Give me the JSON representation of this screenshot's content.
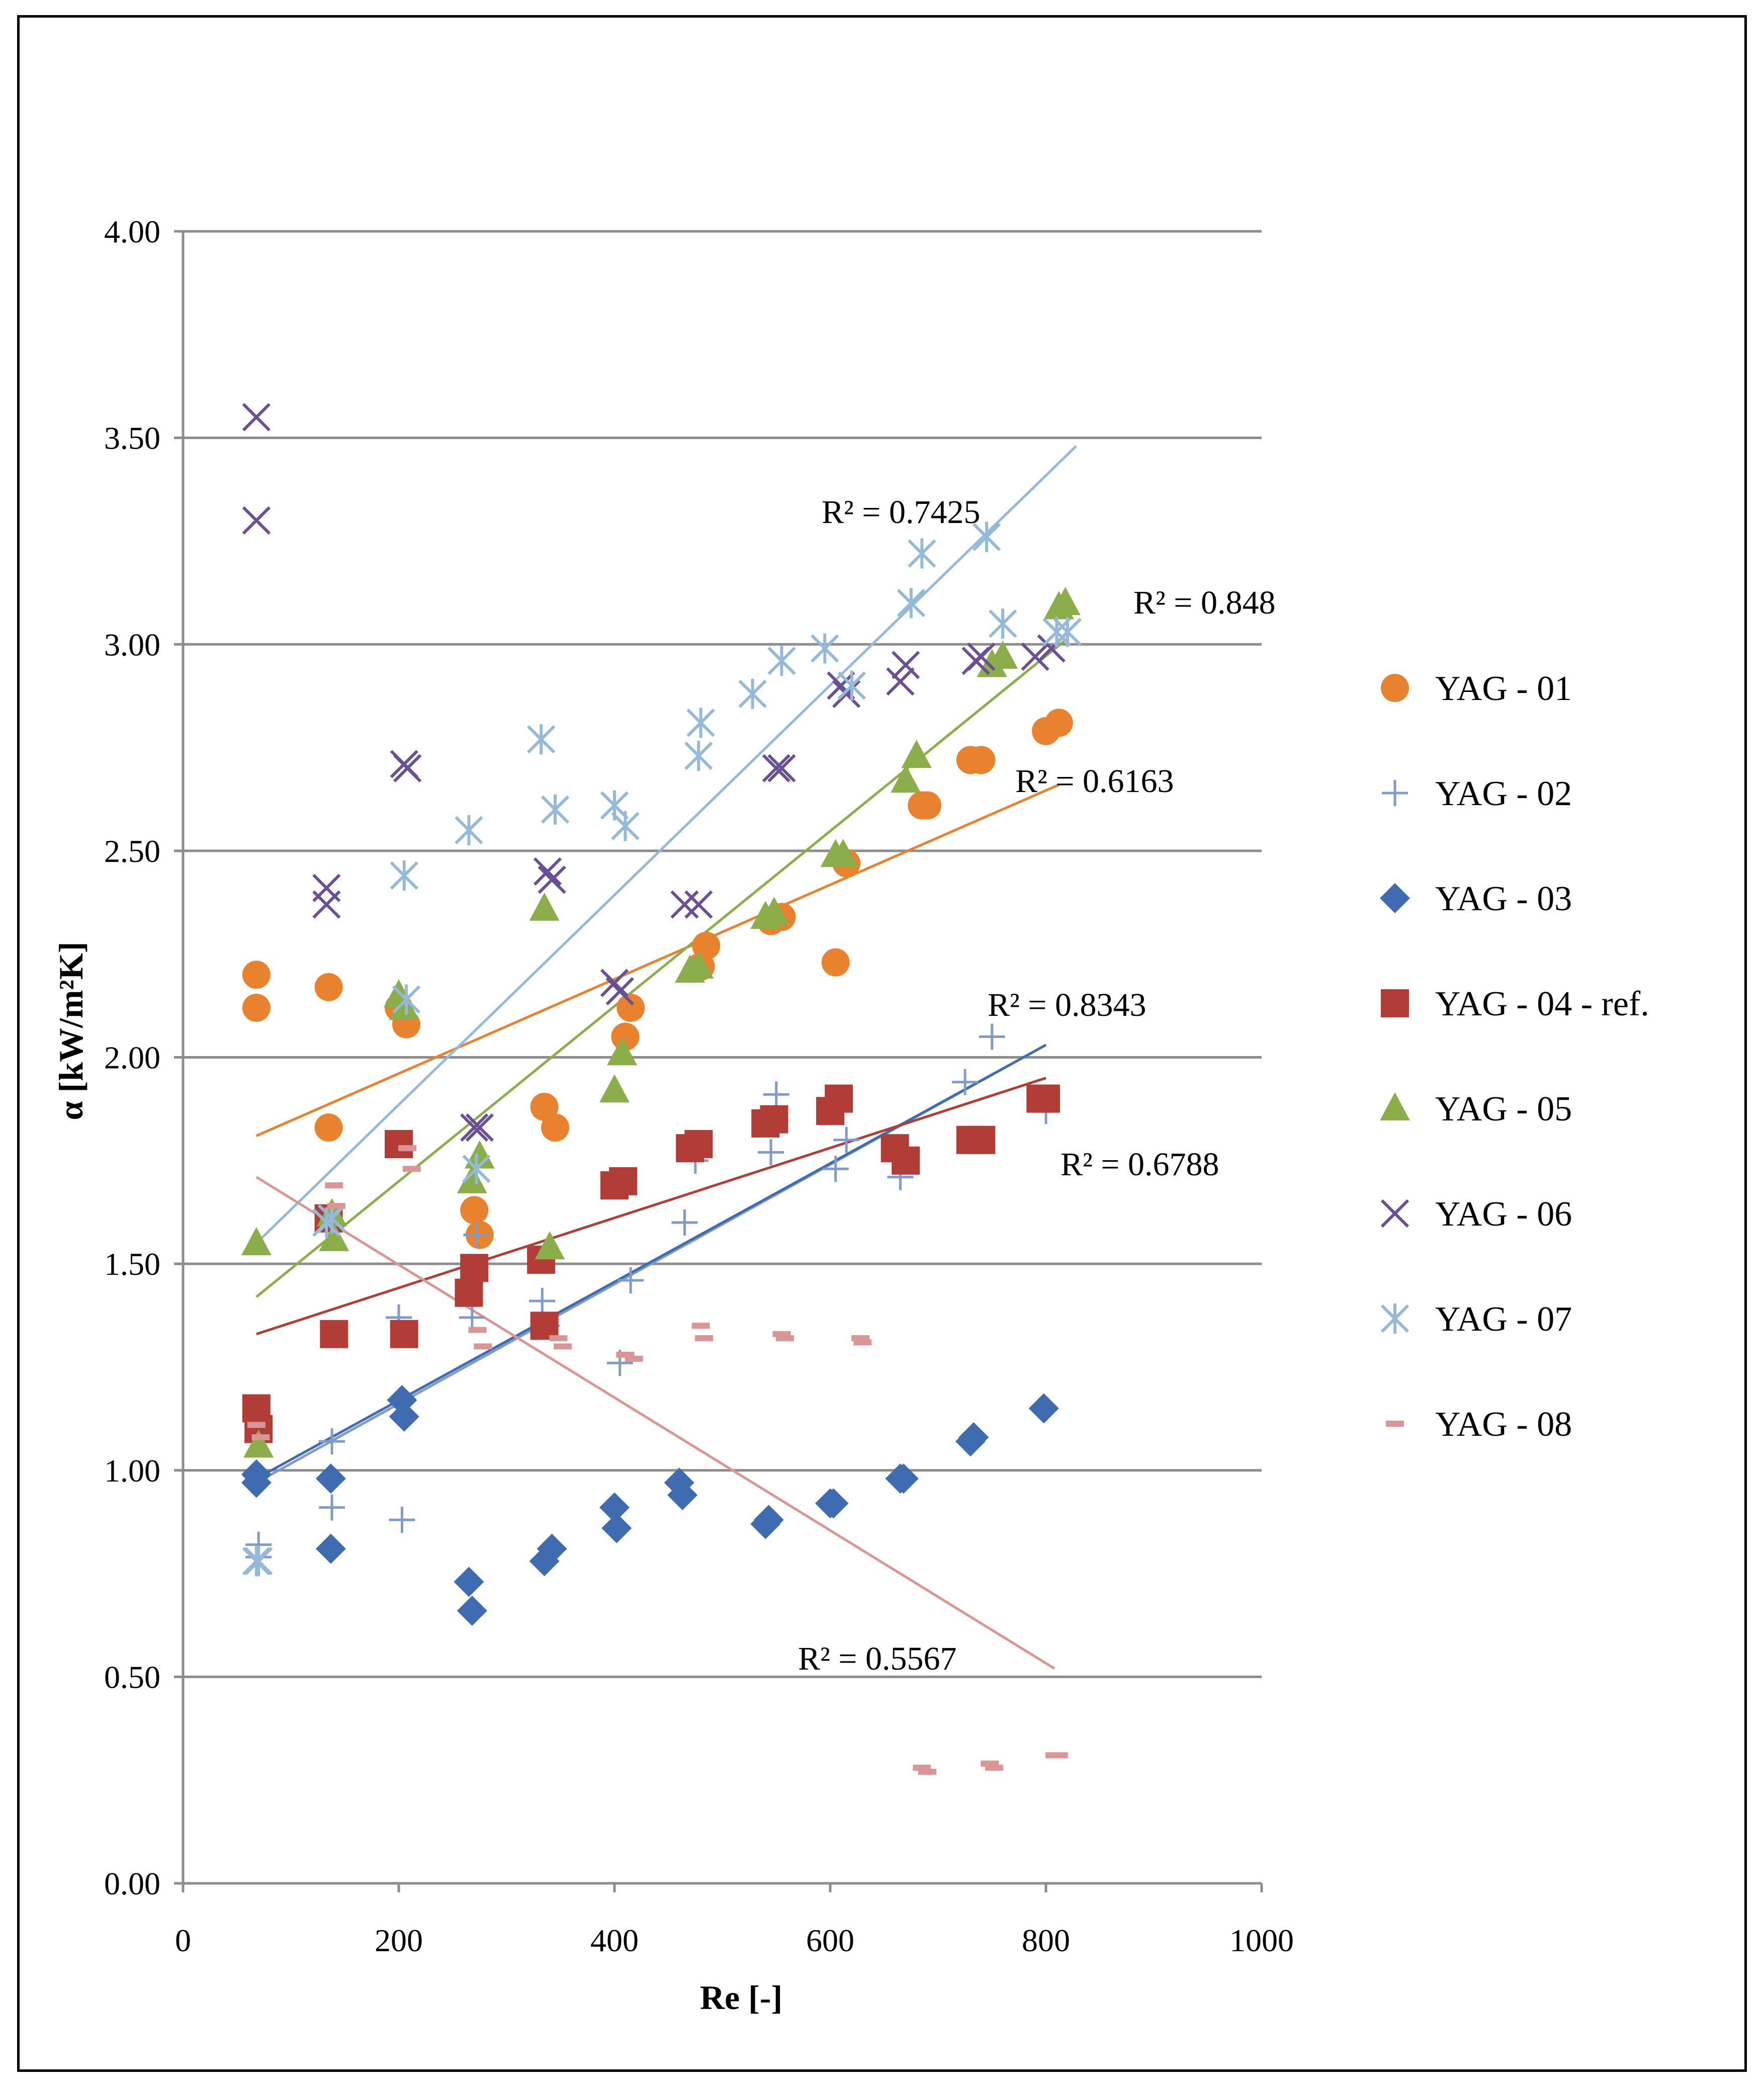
{
  "chart_data": {
    "type": "scatter",
    "xlabel": "Re [-]",
    "ylabel": "α [kW/m²K]",
    "xlim": [
      0,
      1000
    ],
    "ylim": [
      0,
      4
    ],
    "x_ticks": [
      "0",
      "200",
      "400",
      "600",
      "800",
      "1000"
    ],
    "y_ticks": [
      "0.00",
      "0.50",
      "1.00",
      "1.50",
      "2.00",
      "2.50",
      "3.00",
      "3.50",
      "4.00"
    ],
    "grid": "horizontal",
    "legend_position": "right",
    "series": [
      {
        "name": "YAG - 01",
        "marker": "circle",
        "color": "#E8822F",
        "points": [
          [
            68,
            2.2
          ],
          [
            68,
            2.12
          ],
          [
            135,
            2.17
          ],
          [
            135,
            1.83
          ],
          [
            200,
            2.12
          ],
          [
            207,
            2.08
          ],
          [
            270,
            1.63
          ],
          [
            275,
            1.57
          ],
          [
            335,
            1.88
          ],
          [
            345,
            1.83
          ],
          [
            410,
            2.05
          ],
          [
            415,
            2.12
          ],
          [
            480,
            2.22
          ],
          [
            485,
            2.27
          ],
          [
            545,
            2.33
          ],
          [
            555,
            2.34
          ],
          [
            605,
            2.23
          ],
          [
            615,
            2.47
          ],
          [
            685,
            2.61
          ],
          [
            690,
            2.61
          ],
          [
            730,
            2.72
          ],
          [
            740,
            2.72
          ],
          [
            800,
            2.79
          ],
          [
            812,
            2.81
          ]
        ],
        "trend": {
          "x": [
            68,
            812
          ],
          "y": [
            1.81,
            2.66
          ],
          "r2_label": "R² = 0.6163"
        }
      },
      {
        "name": "YAG - 02",
        "marker": "plus",
        "color": "#7F9ACB",
        "points": [
          [
            70,
            0.82
          ],
          [
            70,
            0.79
          ],
          [
            138,
            1.07
          ],
          [
            138,
            0.91
          ],
          [
            200,
            1.37
          ],
          [
            203,
            0.88
          ],
          [
            268,
            1.37
          ],
          [
            272,
            1.57
          ],
          [
            333,
            1.41
          ],
          [
            337,
            1.35
          ],
          [
            405,
            1.26
          ],
          [
            415,
            1.46
          ],
          [
            465,
            1.6
          ],
          [
            475,
            1.75
          ],
          [
            545,
            1.77
          ],
          [
            550,
            1.91
          ],
          [
            605,
            1.73
          ],
          [
            615,
            1.8
          ],
          [
            660,
            1.75
          ],
          [
            665,
            1.71
          ],
          [
            725,
            1.94
          ],
          [
            750,
            2.05
          ],
          [
            800,
            1.87
          ]
        ],
        "trend": {
          "x": [
            68,
            800
          ],
          "y": [
            0.97,
            2.03
          ],
          "r2_label": "R² = 0.8343"
        }
      },
      {
        "name": "YAG - 03",
        "marker": "diamond",
        "color": "#3F6CB0",
        "points": [
          [
            68,
            0.99
          ],
          [
            68,
            0.97
          ],
          [
            137,
            0.98
          ],
          [
            137,
            0.81
          ],
          [
            203,
            1.17
          ],
          [
            205,
            1.13
          ],
          [
            265,
            0.73
          ],
          [
            268,
            0.66
          ],
          [
            335,
            0.78
          ],
          [
            342,
            0.81
          ],
          [
            400,
            0.91
          ],
          [
            402,
            0.86
          ],
          [
            460,
            0.97
          ],
          [
            463,
            0.94
          ],
          [
            540,
            0.87
          ],
          [
            543,
            0.88
          ],
          [
            600,
            0.92
          ],
          [
            603,
            0.92
          ],
          [
            665,
            0.98
          ],
          [
            668,
            0.98
          ],
          [
            730,
            1.07
          ],
          [
            733,
            1.08
          ],
          [
            798,
            1.15
          ]
        ],
        "trend": {
          "x": [
            68,
            800
          ],
          "y": [
            0.98,
            2.03
          ],
          "r2_label": null
        }
      },
      {
        "name": "YAG - 04 - ref.",
        "marker": "square",
        "color": "#B23C36",
        "points": [
          [
            68,
            1.15
          ],
          [
            70,
            1.1
          ],
          [
            135,
            1.61
          ],
          [
            140,
            1.33
          ],
          [
            200,
            1.79
          ],
          [
            205,
            1.33
          ],
          [
            265,
            1.43
          ],
          [
            270,
            1.49
          ],
          [
            332,
            1.51
          ],
          [
            335,
            1.35
          ],
          [
            400,
            1.69
          ],
          [
            408,
            1.7
          ],
          [
            470,
            1.78
          ],
          [
            478,
            1.79
          ],
          [
            540,
            1.84
          ],
          [
            548,
            1.85
          ],
          [
            600,
            1.87
          ],
          [
            608,
            1.9
          ],
          [
            660,
            1.78
          ],
          [
            670,
            1.75
          ],
          [
            730,
            1.8
          ],
          [
            740,
            1.8
          ],
          [
            795,
            1.9
          ],
          [
            800,
            1.9
          ]
        ],
        "trend": {
          "x": [
            68,
            800
          ],
          "y": [
            1.33,
            1.95
          ],
          "r2_label": "R² = 0.6788"
        }
      },
      {
        "name": "YAG - 05",
        "marker": "triangle",
        "color": "#8BAD4A",
        "points": [
          [
            68,
            1.55
          ],
          [
            70,
            1.06
          ],
          [
            138,
            1.62
          ],
          [
            140,
            1.56
          ],
          [
            200,
            2.15
          ],
          [
            205,
            2.12
          ],
          [
            268,
            1.7
          ],
          [
            275,
            1.76
          ],
          [
            335,
            2.36
          ],
          [
            340,
            1.54
          ],
          [
            400,
            1.92
          ],
          [
            407,
            2.01
          ],
          [
            470,
            2.21
          ],
          [
            478,
            2.22
          ],
          [
            540,
            2.34
          ],
          [
            548,
            2.35
          ],
          [
            605,
            2.49
          ],
          [
            612,
            2.49
          ],
          [
            670,
            2.67
          ],
          [
            680,
            2.73
          ],
          [
            750,
            2.95
          ],
          [
            760,
            2.97
          ],
          [
            812,
            3.09
          ],
          [
            818,
            3.1
          ]
        ],
        "trend": {
          "x": [
            68,
            818
          ],
          "y": [
            1.42,
            3.01
          ],
          "r2_label": "R² = 0.848"
        }
      },
      {
        "name": "YAG - 06",
        "marker": "x",
        "color": "#6A4F93",
        "points": [
          [
            68,
            3.55
          ],
          [
            68,
            3.3
          ],
          [
            133,
            2.41
          ],
          [
            133,
            2.37
          ],
          [
            205,
            2.71
          ],
          [
            208,
            2.7
          ],
          [
            270,
            1.83
          ],
          [
            275,
            1.83
          ],
          [
            338,
            2.45
          ],
          [
            342,
            2.43
          ],
          [
            400,
            2.18
          ],
          [
            405,
            2.16
          ],
          [
            465,
            2.37
          ],
          [
            478,
            2.37
          ],
          [
            550,
            2.7
          ],
          [
            555,
            2.7
          ],
          [
            610,
            2.9
          ],
          [
            615,
            2.88
          ],
          [
            665,
            2.91
          ],
          [
            670,
            2.95
          ],
          [
            735,
            2.96
          ],
          [
            740,
            2.97
          ],
          [
            790,
            2.97
          ],
          [
            805,
            2.99
          ]
        ],
        "trend": null
      },
      {
        "name": "YAG - 07",
        "marker": "asterisk",
        "color": "#94B9D9",
        "points": [
          [
            68,
            0.78
          ],
          [
            70,
            0.78
          ],
          [
            133,
            1.6
          ],
          [
            138,
            1.61
          ],
          [
            205,
            2.44
          ],
          [
            207,
            2.14
          ],
          [
            265,
            2.55
          ],
          [
            272,
            1.73
          ],
          [
            332,
            2.77
          ],
          [
            345,
            2.6
          ],
          [
            400,
            2.61
          ],
          [
            410,
            2.56
          ],
          [
            478,
            2.73
          ],
          [
            480,
            2.81
          ],
          [
            528,
            2.88
          ],
          [
            555,
            2.96
          ],
          [
            595,
            2.99
          ],
          [
            620,
            2.9
          ],
          [
            675,
            3.1
          ],
          [
            685,
            3.22
          ],
          [
            745,
            3.26
          ],
          [
            760,
            3.05
          ],
          [
            810,
            3.03
          ],
          [
            820,
            3.03
          ]
        ],
        "trend": {
          "x": [
            68,
            828
          ],
          "y": [
            1.55,
            3.48
          ],
          "r2_label": "R² = 0.7425"
        }
      },
      {
        "name": "YAG - 08",
        "marker": "dash",
        "color": "#D99694",
        "points": [
          [
            68,
            1.11
          ],
          [
            72,
            1.08
          ],
          [
            140,
            1.69
          ],
          [
            142,
            1.64
          ],
          [
            208,
            1.78
          ],
          [
            212,
            1.73
          ],
          [
            273,
            1.34
          ],
          [
            278,
            1.3
          ],
          [
            348,
            1.32
          ],
          [
            352,
            1.3
          ],
          [
            410,
            1.28
          ],
          [
            418,
            1.27
          ],
          [
            480,
            1.35
          ],
          [
            483,
            1.32
          ],
          [
            555,
            1.33
          ],
          [
            558,
            1.32
          ],
          [
            628,
            1.32
          ],
          [
            630,
            1.31
          ],
          [
            685,
            0.28
          ],
          [
            690,
            0.27
          ],
          [
            748,
            0.29
          ],
          [
            752,
            0.28
          ],
          [
            808,
            0.31
          ],
          [
            812,
            0.31
          ]
        ],
        "trend": {
          "x": [
            68,
            808
          ],
          "y": [
            1.71,
            0.52
          ],
          "r2_label": "R² = 0.5567"
        }
      }
    ]
  }
}
